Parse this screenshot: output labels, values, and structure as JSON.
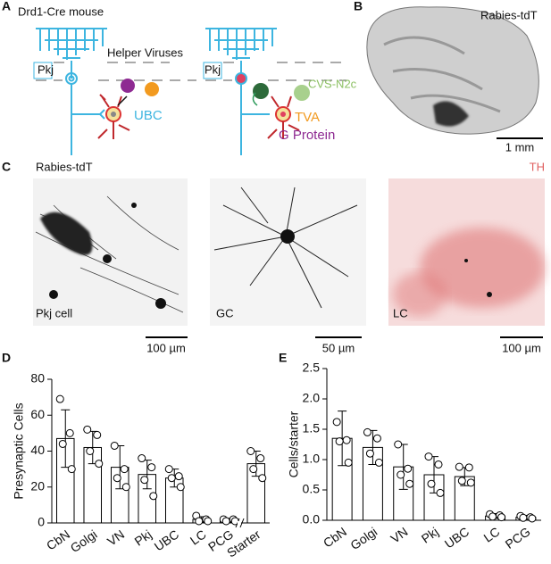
{
  "labels": [
    "A",
    "B",
    "C",
    "D",
    "E"
  ],
  "schematic": {
    "title": "Drd1-Cre mouse",
    "pkj_left": "Pkj",
    "helper": "Helper Viruses",
    "ubc": "UBC",
    "pkj_right": "Pkj",
    "cvs": "CVS-N2c",
    "tva": "TVA",
    "gprotein": "G Protein"
  },
  "section": {
    "label": "Rabies-tdT",
    "scale": "1 mm"
  },
  "images": {
    "channel": "Rabies-tdT",
    "th": "TH",
    "panels": [
      {
        "label": "Pkj cell",
        "scale": "100 µm"
      },
      {
        "label": "GC",
        "scale": "50 µm"
      },
      {
        "label": "LC",
        "scale": "100 µm"
      }
    ]
  },
  "chart_data": [
    {
      "type": "bar",
      "ylabel": "Presynaptic Cells",
      "color": "#ffffff",
      "categories": [
        "CbN",
        "Golgi",
        "VN",
        "Pkj",
        "UBC",
        "LC",
        "PCG",
        "Starter"
      ],
      "values": [
        47,
        42,
        31,
        27,
        25,
        2,
        1.5,
        33
      ],
      "errors": [
        16,
        9,
        12,
        8,
        5,
        1.5,
        1,
        7
      ],
      "points": [
        [
          69,
          50,
          44,
          30
        ],
        [
          52,
          49,
          40,
          33
        ],
        [
          43,
          30,
          25,
          20
        ],
        [
          36,
          31,
          24,
          15
        ],
        [
          30,
          26,
          25,
          20
        ],
        [
          4,
          2,
          1,
          1
        ],
        [
          2,
          2,
          1,
          1
        ],
        [
          40,
          36,
          30,
          25
        ]
      ],
      "ylim": [
        0,
        80
      ],
      "yticks": [
        0,
        20,
        40,
        60,
        80
      ]
    },
    {
      "type": "bar",
      "ylabel": "Cells/starter",
      "color": "#ffffff",
      "categories": [
        "CbN",
        "Golgi",
        "VN",
        "Pkj",
        "UBC",
        "LC",
        "PCG"
      ],
      "values": [
        1.35,
        1.2,
        0.88,
        0.75,
        0.72,
        0.07,
        0.05
      ],
      "errors": [
        0.45,
        0.28,
        0.37,
        0.3,
        0.15,
        0.04,
        0.03
      ],
      "points": [
        [
          1.62,
          1.32,
          1.3,
          0.95
        ],
        [
          1.45,
          1.35,
          1.1,
          0.95
        ],
        [
          1.25,
          0.85,
          0.75,
          0.6
        ],
        [
          1.05,
          0.92,
          0.6,
          0.45
        ],
        [
          0.88,
          0.87,
          0.65,
          0.62
        ],
        [
          0.1,
          0.08,
          0.06,
          0.05
        ],
        [
          0.07,
          0.05,
          0.04,
          0.03
        ]
      ],
      "ylim": [
        0,
        2.5
      ],
      "yticks": [
        {
          "value": 0,
          "label": "0.0"
        },
        0.5,
        {
          "value": 1,
          "label": "1.0"
        },
        1.5,
        {
          "value": 2,
          "label": "2.0"
        },
        2.5
      ]
    }
  ]
}
